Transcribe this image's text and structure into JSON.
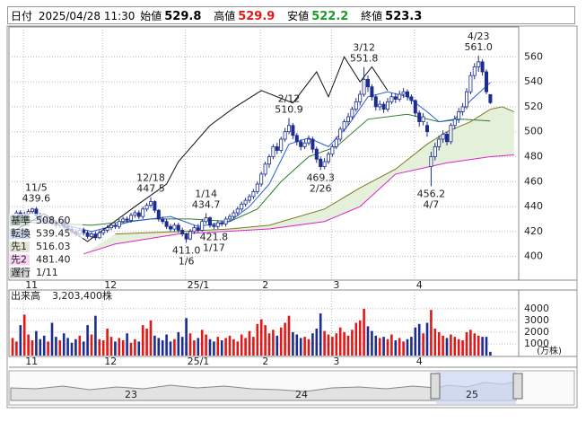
{
  "header": {
    "date_label": "日付",
    "datetime": "2025/04/28 11:30",
    "open_label": "始値",
    "open": 529.8,
    "high_label": "高値",
    "high": 529.9,
    "low_label": "安値",
    "low": 522.2,
    "close_label": "終値",
    "close": 523.3
  },
  "chart_data": {
    "type": "candlestick",
    "categories": [
      null,
      null,
      null,
      "11",
      null,
      null,
      null,
      null,
      null,
      null,
      null,
      null,
      null,
      null,
      null,
      null,
      null,
      null,
      null,
      null,
      null,
      null,
      null,
      "12",
      null,
      null,
      null,
      null,
      null,
      null,
      null,
      null,
      null,
      null,
      null,
      null,
      null,
      null,
      null,
      null,
      null,
      null,
      null,
      null,
      "25/1",
      null,
      null,
      null,
      null,
      null,
      null,
      null,
      null,
      null,
      null,
      null,
      null,
      null,
      null,
      null,
      null,
      null,
      null,
      "2",
      null,
      null,
      null,
      null,
      null,
      null,
      null,
      null,
      null,
      null,
      null,
      null,
      null,
      null,
      null,
      null,
      null,
      "3",
      null,
      null,
      null,
      null,
      null,
      null,
      null,
      null,
      null,
      null,
      null,
      null,
      null,
      null,
      null,
      null,
      null,
      null,
      null,
      null,
      "4",
      null,
      null,
      null,
      null,
      null,
      null,
      null,
      null,
      null,
      null,
      null,
      null,
      null,
      null,
      null,
      null,
      null,
      null,
      null
    ],
    "open": [
      430,
      432,
      435,
      430,
      434,
      436,
      438,
      433,
      430,
      428,
      431,
      427,
      425,
      428,
      424,
      422,
      420,
      418,
      421,
      419,
      416,
      418,
      415,
      419,
      421,
      423,
      425,
      424,
      428,
      430,
      429,
      433,
      435,
      432,
      438,
      441,
      444,
      437,
      430,
      428,
      424,
      422,
      425,
      421,
      418,
      414,
      420,
      423,
      421,
      428,
      431,
      425,
      424,
      427,
      426,
      430,
      432,
      435,
      438,
      442,
      445,
      448,
      452,
      458,
      466,
      474,
      480,
      488,
      485,
      494,
      500,
      505,
      497,
      492,
      488,
      491,
      494,
      486,
      478,
      472,
      476,
      482,
      488,
      494,
      502,
      508,
      512,
      518,
      524,
      530,
      542,
      536,
      528,
      520,
      522,
      518,
      524,
      528,
      526,
      530,
      532,
      528,
      525,
      515,
      508,
      505,
      472,
      480,
      488,
      494,
      498,
      492,
      505,
      510,
      516,
      520,
      532,
      545,
      552,
      556,
      548,
      529.8
    ],
    "high": [
      434,
      437,
      437,
      436,
      438,
      439,
      439.6,
      435,
      432,
      433,
      433,
      429,
      430,
      430,
      426,
      424,
      422,
      423,
      423,
      421,
      420,
      420,
      421,
      423,
      425,
      427,
      427,
      430,
      432,
      432,
      435,
      437,
      437,
      440,
      443,
      447.5,
      445,
      438,
      432,
      430,
      426,
      427,
      427,
      423,
      419,
      422,
      425,
      426,
      430,
      434.7,
      432,
      427,
      429,
      429,
      432,
      434,
      437,
      440,
      444,
      447,
      450,
      454,
      460,
      468,
      476,
      482,
      490,
      491,
      496,
      503,
      510.9,
      507,
      499,
      494,
      494,
      497,
      496,
      488,
      480,
      479,
      484,
      490,
      496,
      504,
      510,
      515,
      520,
      527,
      533,
      551.8,
      545,
      538,
      530,
      525,
      524,
      527,
      531,
      531,
      533,
      535,
      534,
      530,
      526,
      517,
      515,
      508,
      484,
      491,
      497,
      501,
      500,
      507,
      513,
      519,
      523,
      535,
      548,
      555,
      561,
      558,
      550,
      529.9
    ],
    "low": [
      428,
      430,
      428,
      428,
      432,
      434,
      431,
      428,
      426,
      426,
      425,
      423,
      423,
      422,
      420,
      418,
      416,
      416,
      417,
      414,
      414,
      413,
      414,
      417,
      419,
      421,
      422,
      422,
      426,
      427,
      427,
      431,
      430,
      430,
      436,
      439,
      435,
      428,
      426,
      422,
      420,
      420,
      419,
      416,
      411,
      413,
      418,
      419,
      420,
      426,
      423,
      421.8,
      422,
      424,
      424,
      428,
      430,
      433,
      436,
      440,
      443,
      446,
      450,
      456,
      464,
      471,
      478,
      482,
      483,
      492,
      498,
      494,
      489,
      485,
      486,
      489,
      483,
      475,
      469.3,
      470,
      474,
      480,
      486,
      492,
      500,
      505,
      510,
      516,
      521,
      528,
      532,
      525,
      517,
      517,
      515,
      516,
      522,
      523,
      524,
      527,
      525,
      522,
      512,
      504,
      505,
      496,
      456.2,
      477,
      485,
      491,
      489,
      490,
      502,
      507,
      513,
      518,
      530,
      542,
      548,
      545,
      530,
      522.2
    ],
    "close": [
      432,
      435,
      430,
      434,
      436,
      438,
      433,
      430,
      428,
      431,
      427,
      425,
      428,
      424,
      422,
      420,
      418,
      421,
      419,
      416,
      418,
      415,
      419,
      421,
      423,
      425,
      424,
      428,
      430,
      429,
      433,
      435,
      432,
      438,
      441,
      444,
      437,
      430,
      428,
      424,
      422,
      425,
      421,
      418,
      414,
      420,
      423,
      421,
      428,
      431,
      425,
      424,
      427,
      426,
      430,
      432,
      435,
      438,
      442,
      445,
      448,
      452,
      458,
      466,
      474,
      480,
      488,
      485,
      494,
      500,
      505,
      497,
      492,
      488,
      491,
      494,
      486,
      478,
      472,
      476,
      482,
      488,
      494,
      502,
      508,
      512,
      518,
      524,
      530,
      542,
      536,
      528,
      520,
      522,
      518,
      524,
      528,
      526,
      530,
      532,
      528,
      525,
      515,
      508,
      512,
      500,
      480,
      488,
      494,
      498,
      492,
      505,
      510,
      516,
      520,
      532,
      545,
      552,
      556,
      548,
      532,
      523.3
    ],
    "up_color": "#ffffff",
    "down_color": "#1c2d8f",
    "ylim": [
      381,
      584
    ],
    "yticks": [
      400,
      420,
      440,
      460,
      480,
      500,
      520,
      540,
      560
    ],
    "grid": true,
    "lines": [
      {
        "name": "基準",
        "color": "#2e7d2e",
        "x": [
          0,
          20,
          35,
          45,
          55,
          62,
          68,
          75,
          82,
          90,
          100,
          108,
          114,
          121
        ],
        "values": [
          428,
          425,
          430,
          430,
          428,
          438,
          460,
          480,
          488,
          510,
          514,
          508,
          510,
          508.6
        ],
        "current": 508.6,
        "current_label": "508.60"
      },
      {
        "name": "転換",
        "color": "#2a5bd7",
        "x": [
          0,
          10,
          20,
          30,
          40,
          47,
          55,
          60,
          65,
          70,
          75,
          80,
          85,
          90,
          95,
          100,
          105,
          108,
          112,
          116,
          121
        ],
        "values": [
          430,
          428,
          420,
          428,
          432,
          424,
          428,
          440,
          458,
          490,
          495,
          488,
          505,
          528,
          532,
          528,
          516,
          508,
          510,
          525,
          539.45
        ],
        "current": 539.45,
        "current_label": "539.45"
      },
      {
        "name": "先1",
        "color": "#7a7a20",
        "x": [
          26,
          42,
          55,
          65,
          79,
          88,
          97,
          105,
          110,
          116,
          121,
          124,
          127
        ],
        "values": [
          418,
          420,
          422,
          425,
          438,
          455,
          470,
          490,
          500,
          508,
          518,
          520,
          516.03
        ],
        "current": 516.03,
        "current_label": "516.03"
      },
      {
        "name": "先2",
        "color": "#e020d0",
        "x": [
          18,
          26,
          42,
          65,
          79,
          88,
          97,
          110,
          121,
          127
        ],
        "values": [
          402,
          410,
          418,
          422,
          428,
          440,
          466,
          475,
          480,
          481.4
        ],
        "current": 481.4,
        "current_label": "481.40"
      },
      {
        "name": "遅行",
        "color": "#111111",
        "x": [
          0,
          8,
          19,
          31,
          39,
          42,
          50,
          56,
          63,
          71,
          77,
          80,
          84,
          88,
          91,
          95
        ],
        "values": [
          420,
          434,
          412,
          440,
          458,
          476,
          505,
          519,
          533,
          523,
          548,
          528,
          560,
          540,
          552,
          533
        ],
        "legend_text": "1/11"
      }
    ],
    "cloud_color": "#e4f0da",
    "annotations": [
      {
        "date": "11/5",
        "value": 439.6
      },
      {
        "date": "12/18",
        "value": 447.5
      },
      {
        "date": "1/14",
        "value": 434.7
      },
      {
        "date": "1/6",
        "value": 411,
        "value_label": "411.0"
      },
      {
        "date": "1/17",
        "value": 421.8
      },
      {
        "date": "2/12",
        "value": 510.9
      },
      {
        "date": "3/12",
        "value": 551.8
      },
      {
        "date": "2/26",
        "value": 469.3
      },
      {
        "date": "4/23",
        "value": 561,
        "value_label": "561.0"
      },
      {
        "date": "4/7",
        "value": 456.2
      }
    ],
    "volume": {
      "title": "出来高",
      "total_label": "3,203,400株",
      "unit": "(万株)",
      "values": [
        1500,
        1200,
        2600,
        3500,
        1800,
        1300,
        2100,
        1400,
        1700,
        1200,
        2800,
        1600,
        1300,
        1900,
        1500,
        1100,
        1400,
        1700,
        1200,
        2600,
        1800,
        3400,
        1400,
        1300,
        2300,
        1600,
        1200,
        1500,
        1300,
        1900,
        1100,
        1400,
        1200,
        2600,
        2300,
        3000,
        1700,
        1500,
        1300,
        1800,
        1200,
        1400,
        2000,
        1600,
        3200,
        1900,
        1300,
        1500,
        2200,
        1800,
        1400,
        1200,
        1600,
        1300,
        1500,
        1700,
        1400,
        1200,
        1800,
        1500,
        2100,
        1600,
        2700,
        3100,
        2600,
        1900,
        2200,
        1700,
        2400,
        2800,
        3400,
        2000,
        1800,
        1500,
        1600,
        1400,
        1900,
        2300,
        3600,
        2100,
        1800,
        1600,
        1900,
        2400,
        2000,
        1700,
        2200,
        2800,
        3000,
        4000,
        2500,
        2100,
        1700,
        1500,
        1600,
        1400,
        1800,
        1300,
        1500,
        1200,
        1400,
        1600,
        2400,
        2700,
        1900,
        2800,
        3900,
        2300,
        2000,
        1700,
        1500,
        1800,
        1600,
        1400,
        1300,
        2000,
        2200,
        1900,
        1700,
        1600,
        1600,
        320.34
      ],
      "ylim": [
        0,
        5600
      ],
      "yticks": [
        1000,
        2000,
        3000,
        4000
      ],
      "up_color": "#e01818",
      "down_color": "#1c2d8f"
    },
    "navigator": {
      "labels": [
        "23",
        "24",
        "25"
      ]
    }
  }
}
